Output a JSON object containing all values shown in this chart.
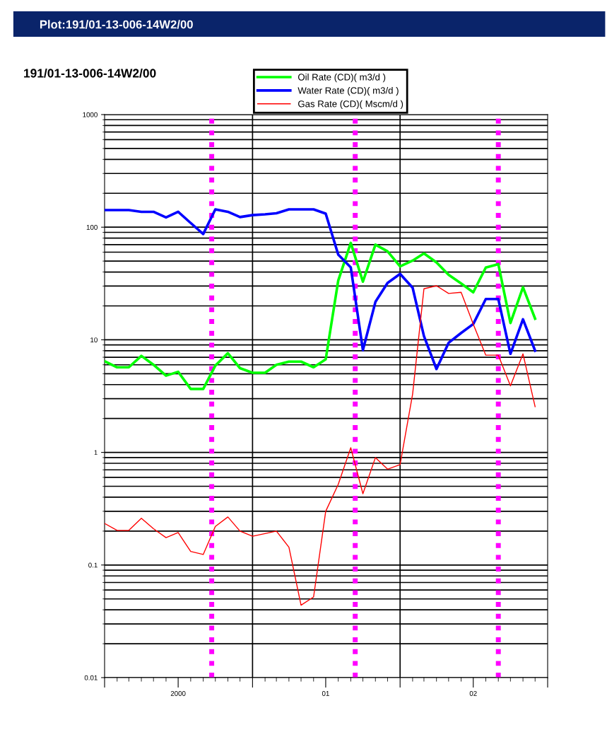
{
  "chart_data": {
    "type": "line",
    "title": "191/01-13-006-14W2/00",
    "annotations": [
      "Plot:191/01-13-006-14W2/00"
    ],
    "x": [
      "2000-01-01",
      "2000-02-01",
      "2000-03-01",
      "2000-04-01",
      "2000-05-01",
      "2000-06-01",
      "2000-07-01",
      "2000-08-01",
      "2000-09-01",
      "2000-10-01",
      "2000-11-01",
      "2000-12-01",
      "2001-01-01",
      "2001-02-01",
      "2001-03-01",
      "2001-04-01",
      "2001-05-01",
      "2001-06-01",
      "2001-07-01",
      "2001-08-01",
      "2001-09-01",
      "2001-10-01",
      "2001-11-01",
      "2001-12-01",
      "2002-01-01",
      "2002-02-01",
      "2002-03-01",
      "2002-04-01",
      "2002-05-01",
      "2002-06-01",
      "2002-07-01",
      "2002-08-01",
      "2002-09-01",
      "2002-10-01",
      "2002-11-01",
      "2002-12-01"
    ],
    "series": [
      {
        "name": "Oil Rate (CD)( m3/d )",
        "color": "#00ff00",
        "values": [
          6.45,
          5.7,
          5.7,
          7.2,
          6.0,
          4.8,
          5.2,
          3.66,
          3.66,
          5.9,
          7.6,
          5.6,
          5.1,
          5.1,
          6.0,
          6.4,
          6.4,
          5.7,
          6.7,
          33.6,
          72.6,
          32.8,
          70,
          61,
          44.8,
          50.5,
          58.5,
          48.6,
          37.8,
          31.6,
          26.4,
          43.8,
          47,
          14.1,
          29.3,
          15.4
        ]
      },
      {
        "name": "Water Rate (CD)( m3/d )",
        "color": "#0000ff",
        "values": [
          142,
          142,
          142,
          137,
          137,
          122,
          137,
          109,
          87,
          144,
          137,
          123,
          128,
          130,
          133,
          144,
          144,
          144,
          132,
          57,
          44,
          8.1,
          21.7,
          32,
          38.5,
          29,
          10.8,
          5.5,
          9.4,
          11.5,
          13.8,
          23,
          23,
          7.5,
          15.2,
          8.0
        ]
      },
      {
        "name": "Gas Rate (CD)( Mscm/d )",
        "color": "#ff0000",
        "values": [
          0.234,
          0.203,
          0.203,
          0.26,
          0.21,
          0.175,
          0.194,
          0.132,
          0.124,
          0.22,
          0.267,
          0.2,
          0.18,
          0.19,
          0.2,
          0.144,
          0.044,
          0.052,
          0.3,
          0.52,
          1.1,
          0.43,
          0.9,
          0.71,
          0.78,
          3.3,
          28.4,
          30.2,
          25.8,
          26.4,
          13.8,
          7.3,
          7.3,
          3.9,
          7.5,
          2.55
        ]
      }
    ],
    "log": "y",
    "ylim": [
      0.01,
      1000
    ],
    "yticks": [
      0.01,
      0.1,
      1,
      10,
      100,
      1000
    ],
    "xlim": [
      "2000-01-01",
      "2003-01-01"
    ],
    "xticks": [
      {
        "value": "2000-01-01",
        "label": null
      },
      {
        "value": "2000-07-01",
        "label": "2000"
      },
      {
        "value": "2001-01-01",
        "label": null
      },
      {
        "value": "2001-07-01",
        "label": "01"
      },
      {
        "value": "2002-01-01",
        "label": null
      },
      {
        "value": "2002-07-01",
        "label": "02"
      },
      {
        "value": "2003-01-01",
        "label": null
      }
    ],
    "ref_lines": [
      {
        "axis": "x",
        "value": "2001-01-01",
        "color": "#000000",
        "line_style": "solid"
      },
      {
        "axis": "x",
        "value": "2002-01-01",
        "color": "#000000",
        "line_style": "solid"
      },
      {
        "axis": "x",
        "value": "2000-09-22",
        "color": "#ff00ff",
        "line_style": "dotted"
      },
      {
        "axis": "x",
        "value": "2001-09-12",
        "color": "#ff00ff",
        "line_style": "dotted"
      },
      {
        "axis": "x",
        "value": "2002-09-01",
        "color": "#ff00ff",
        "line_style": "dotted"
      }
    ],
    "grid": "y",
    "legend": "top",
    "marker": "none",
    "line_style": "solid"
  }
}
